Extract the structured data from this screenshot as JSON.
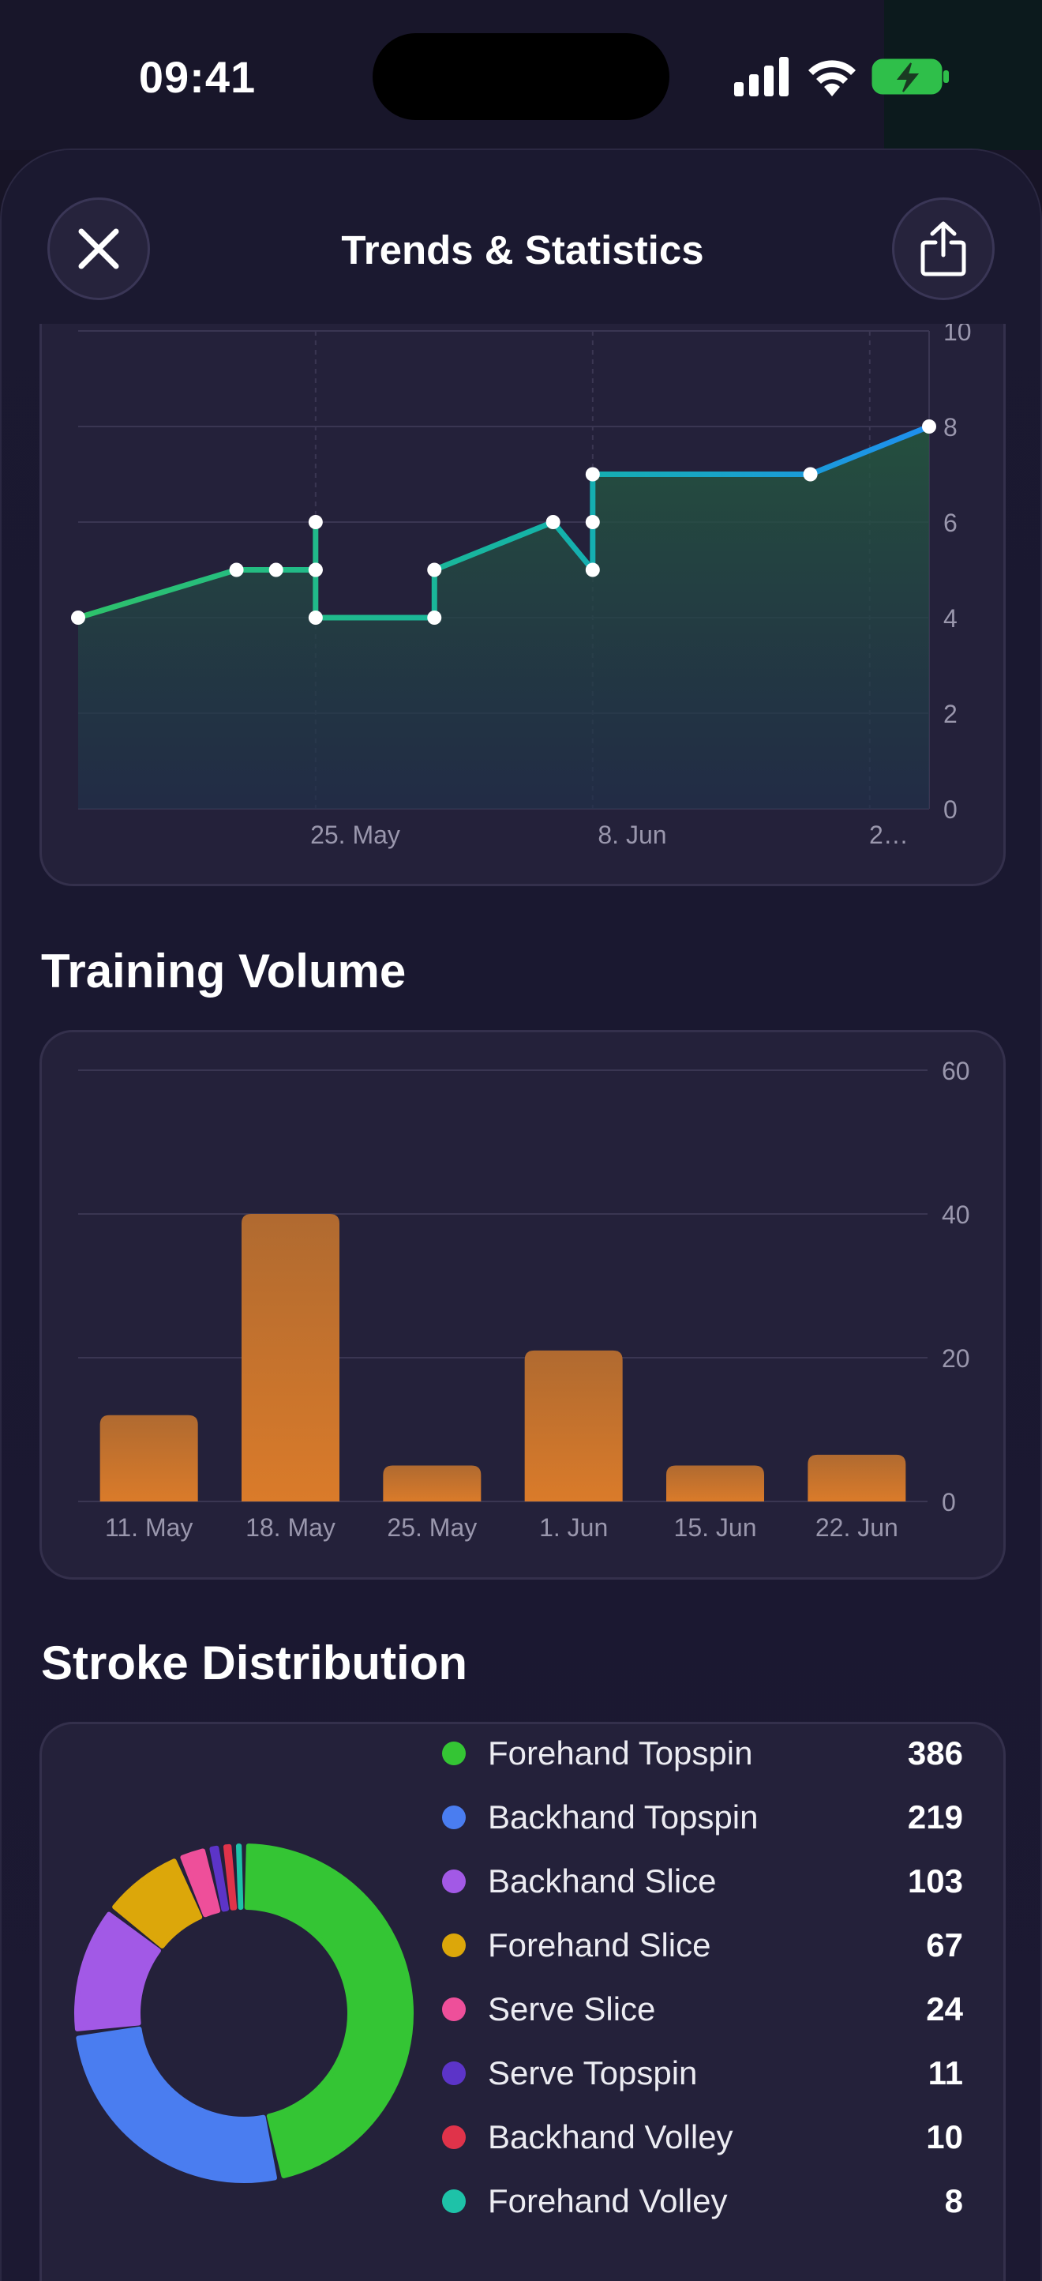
{
  "status_bar": {
    "time": "09:41",
    "icons": [
      "signal-icon",
      "wifi-icon",
      "battery-charging-icon"
    ]
  },
  "header": {
    "title": "Trends & Statistics",
    "close_icon": "close-icon",
    "share_icon": "share-icon"
  },
  "colors": {
    "background": "#1a1830",
    "card": "#24213a",
    "line_start": "#2ec26a",
    "line_end": "#1e8ff0",
    "bar": "#d4782c"
  },
  "chart_data": [
    {
      "type": "line",
      "title": "",
      "ylim": [
        0,
        10
      ],
      "yticks": [
        "0",
        "2",
        "4",
        "6",
        "8",
        "10"
      ],
      "xticks": [
        "25. May",
        "8. Jun",
        "2…"
      ],
      "grid": true,
      "points": [
        {
          "x": "2024-05-11",
          "y": 4
        },
        {
          "x": "2024-05-19",
          "y": 5
        },
        {
          "x": "2024-05-21",
          "y": 5
        },
        {
          "x": "2024-05-23",
          "y": 5
        },
        {
          "x": "2024-05-23",
          "y": 6
        },
        {
          "x": "2024-05-23",
          "y": 5
        },
        {
          "x": "2024-05-23",
          "y": 4
        },
        {
          "x": "2024-05-29",
          "y": 4
        },
        {
          "x": "2024-05-29",
          "y": 5
        },
        {
          "x": "2024-06-04",
          "y": 6
        },
        {
          "x": "2024-06-06",
          "y": 5
        },
        {
          "x": "2024-06-06",
          "y": 6
        },
        {
          "x": "2024-06-06",
          "y": 7
        },
        {
          "x": "2024-06-17",
          "y": 7
        },
        {
          "x": "2024-06-23",
          "y": 8
        }
      ]
    },
    {
      "type": "bar",
      "title": "Training Volume",
      "categories": [
        "11. May",
        "18. May",
        "25. May",
        "1. Jun",
        "15. Jun",
        "22. Jun"
      ],
      "values": [
        12,
        40,
        5,
        21,
        5,
        6.5
      ],
      "ylim": [
        0,
        60
      ],
      "yticks": [
        "0",
        "20",
        "40",
        "60"
      ],
      "grid": true
    },
    {
      "type": "pie",
      "title": "Stroke Distribution",
      "donut": true,
      "slices": [
        {
          "label": "Forehand Topspin",
          "value": 386,
          "color": "#34c534"
        },
        {
          "label": "Backhand Topspin",
          "value": 219,
          "color": "#4a7df0"
        },
        {
          "label": "Backhand Slice",
          "value": 103,
          "color": "#a259e6"
        },
        {
          "label": "Forehand Slice",
          "value": 67,
          "color": "#dca70a"
        },
        {
          "label": "Serve Slice",
          "value": 24,
          "color": "#ee4f9a"
        },
        {
          "label": "Serve Topspin",
          "value": 11,
          "color": "#5c34c8"
        },
        {
          "label": "Backhand Volley",
          "value": 10,
          "color": "#e0334a"
        },
        {
          "label": "Forehand Volley",
          "value": 8,
          "color": "#1ec2a8"
        }
      ]
    }
  ],
  "sections": {
    "training_title": "Training Volume",
    "stroke_title": "Stroke Distribution"
  },
  "legend": [
    {
      "label": "Forehand Topspin",
      "value": "386",
      "color": "#34c534"
    },
    {
      "label": "Backhand Topspin",
      "value": "219",
      "color": "#4a7df0"
    },
    {
      "label": "Backhand Slice",
      "value": "103",
      "color": "#a259e6"
    },
    {
      "label": "Forehand Slice",
      "value": "67",
      "color": "#dca70a"
    },
    {
      "label": "Serve Slice",
      "value": "24",
      "color": "#ee4f9a"
    },
    {
      "label": "Serve Topspin",
      "value": "11",
      "color": "#5c34c8"
    },
    {
      "label": "Backhand Volley",
      "value": "10",
      "color": "#e0334a"
    },
    {
      "label": "Forehand Volley",
      "value": "8",
      "color": "#1ec2a8"
    }
  ]
}
